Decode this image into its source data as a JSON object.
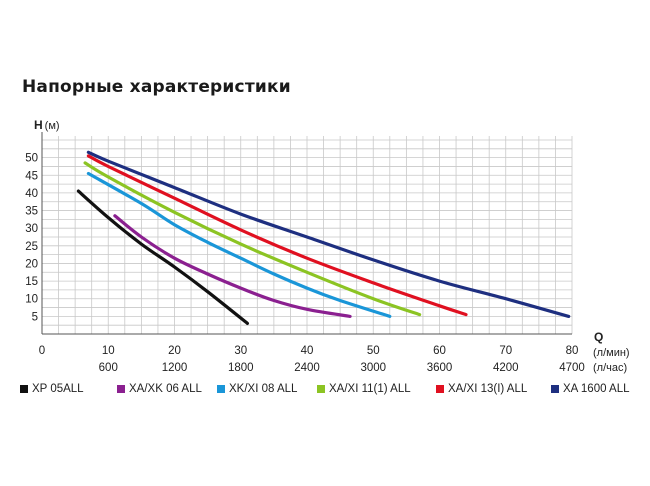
{
  "chart_data": {
    "type": "line",
    "title": "Напорные характеристики",
    "ylabel": "H",
    "ylabel_unit": "(м)",
    "xlabel": "Q",
    "xlabel_unit_1": "(л/мин)",
    "xlabel_unit_2": "(л/час)",
    "xlim": [
      0,
      80
    ],
    "ylim": [
      0,
      55
    ],
    "grid": true,
    "legend_position": "bottom",
    "y_ticks": [
      "5",
      "10",
      "15",
      "20",
      "25",
      "30",
      "35",
      "40",
      "45",
      "50"
    ],
    "x_ticks_lpm": [
      "0",
      "10",
      "20",
      "30",
      "40",
      "50",
      "60",
      "70",
      "80"
    ],
    "x_ticks_lph": [
      "600",
      "1200",
      "1800",
      "2400",
      "3000",
      "3600",
      "4200",
      "4700"
    ],
    "series": [
      {
        "name": "XP 05ALL",
        "color": "#111111",
        "x": [
          5.5,
          10,
          15,
          20,
          25,
          31
        ],
        "y": [
          40.5,
          33,
          25.5,
          19,
          12,
          3
        ]
      },
      {
        "name": "XA/XK 06 ALL",
        "color": "#8b2090",
        "x": [
          11,
          15,
          20,
          25,
          30,
          35,
          40,
          46.5
        ],
        "y": [
          33.5,
          27.5,
          21.5,
          17,
          13,
          9.5,
          7,
          5
        ]
      },
      {
        "name": "XK/XI 08 ALL",
        "color": "#1a96d8",
        "x": [
          7,
          15,
          20,
          25,
          30,
          35,
          40,
          45,
          52.5
        ],
        "y": [
          45.5,
          37,
          31,
          26,
          21.5,
          17,
          13,
          9.5,
          5
        ]
      },
      {
        "name": "XA/XI 11(1) ALL",
        "color": "#8cc423",
        "x": [
          6.5,
          10,
          20,
          30,
          40,
          50,
          57
        ],
        "y": [
          48.5,
          44.5,
          34.5,
          25.5,
          17.5,
          10,
          5.5
        ]
      },
      {
        "name": "XA/XI 13(I) ALL",
        "color": "#e01020",
        "x": [
          7,
          10,
          20,
          30,
          40,
          50,
          60,
          64
        ],
        "y": [
          50.5,
          47.5,
          38.5,
          29.5,
          21.5,
          14.5,
          8,
          5.5
        ]
      },
      {
        "name": "XA 1600 ALL",
        "color": "#1e2f80",
        "x": [
          7,
          10,
          20,
          30,
          40,
          50,
          60,
          70,
          79.5
        ],
        "y": [
          51.5,
          49,
          41.5,
          34,
          27.5,
          21,
          15,
          10,
          5
        ]
      }
    ]
  }
}
